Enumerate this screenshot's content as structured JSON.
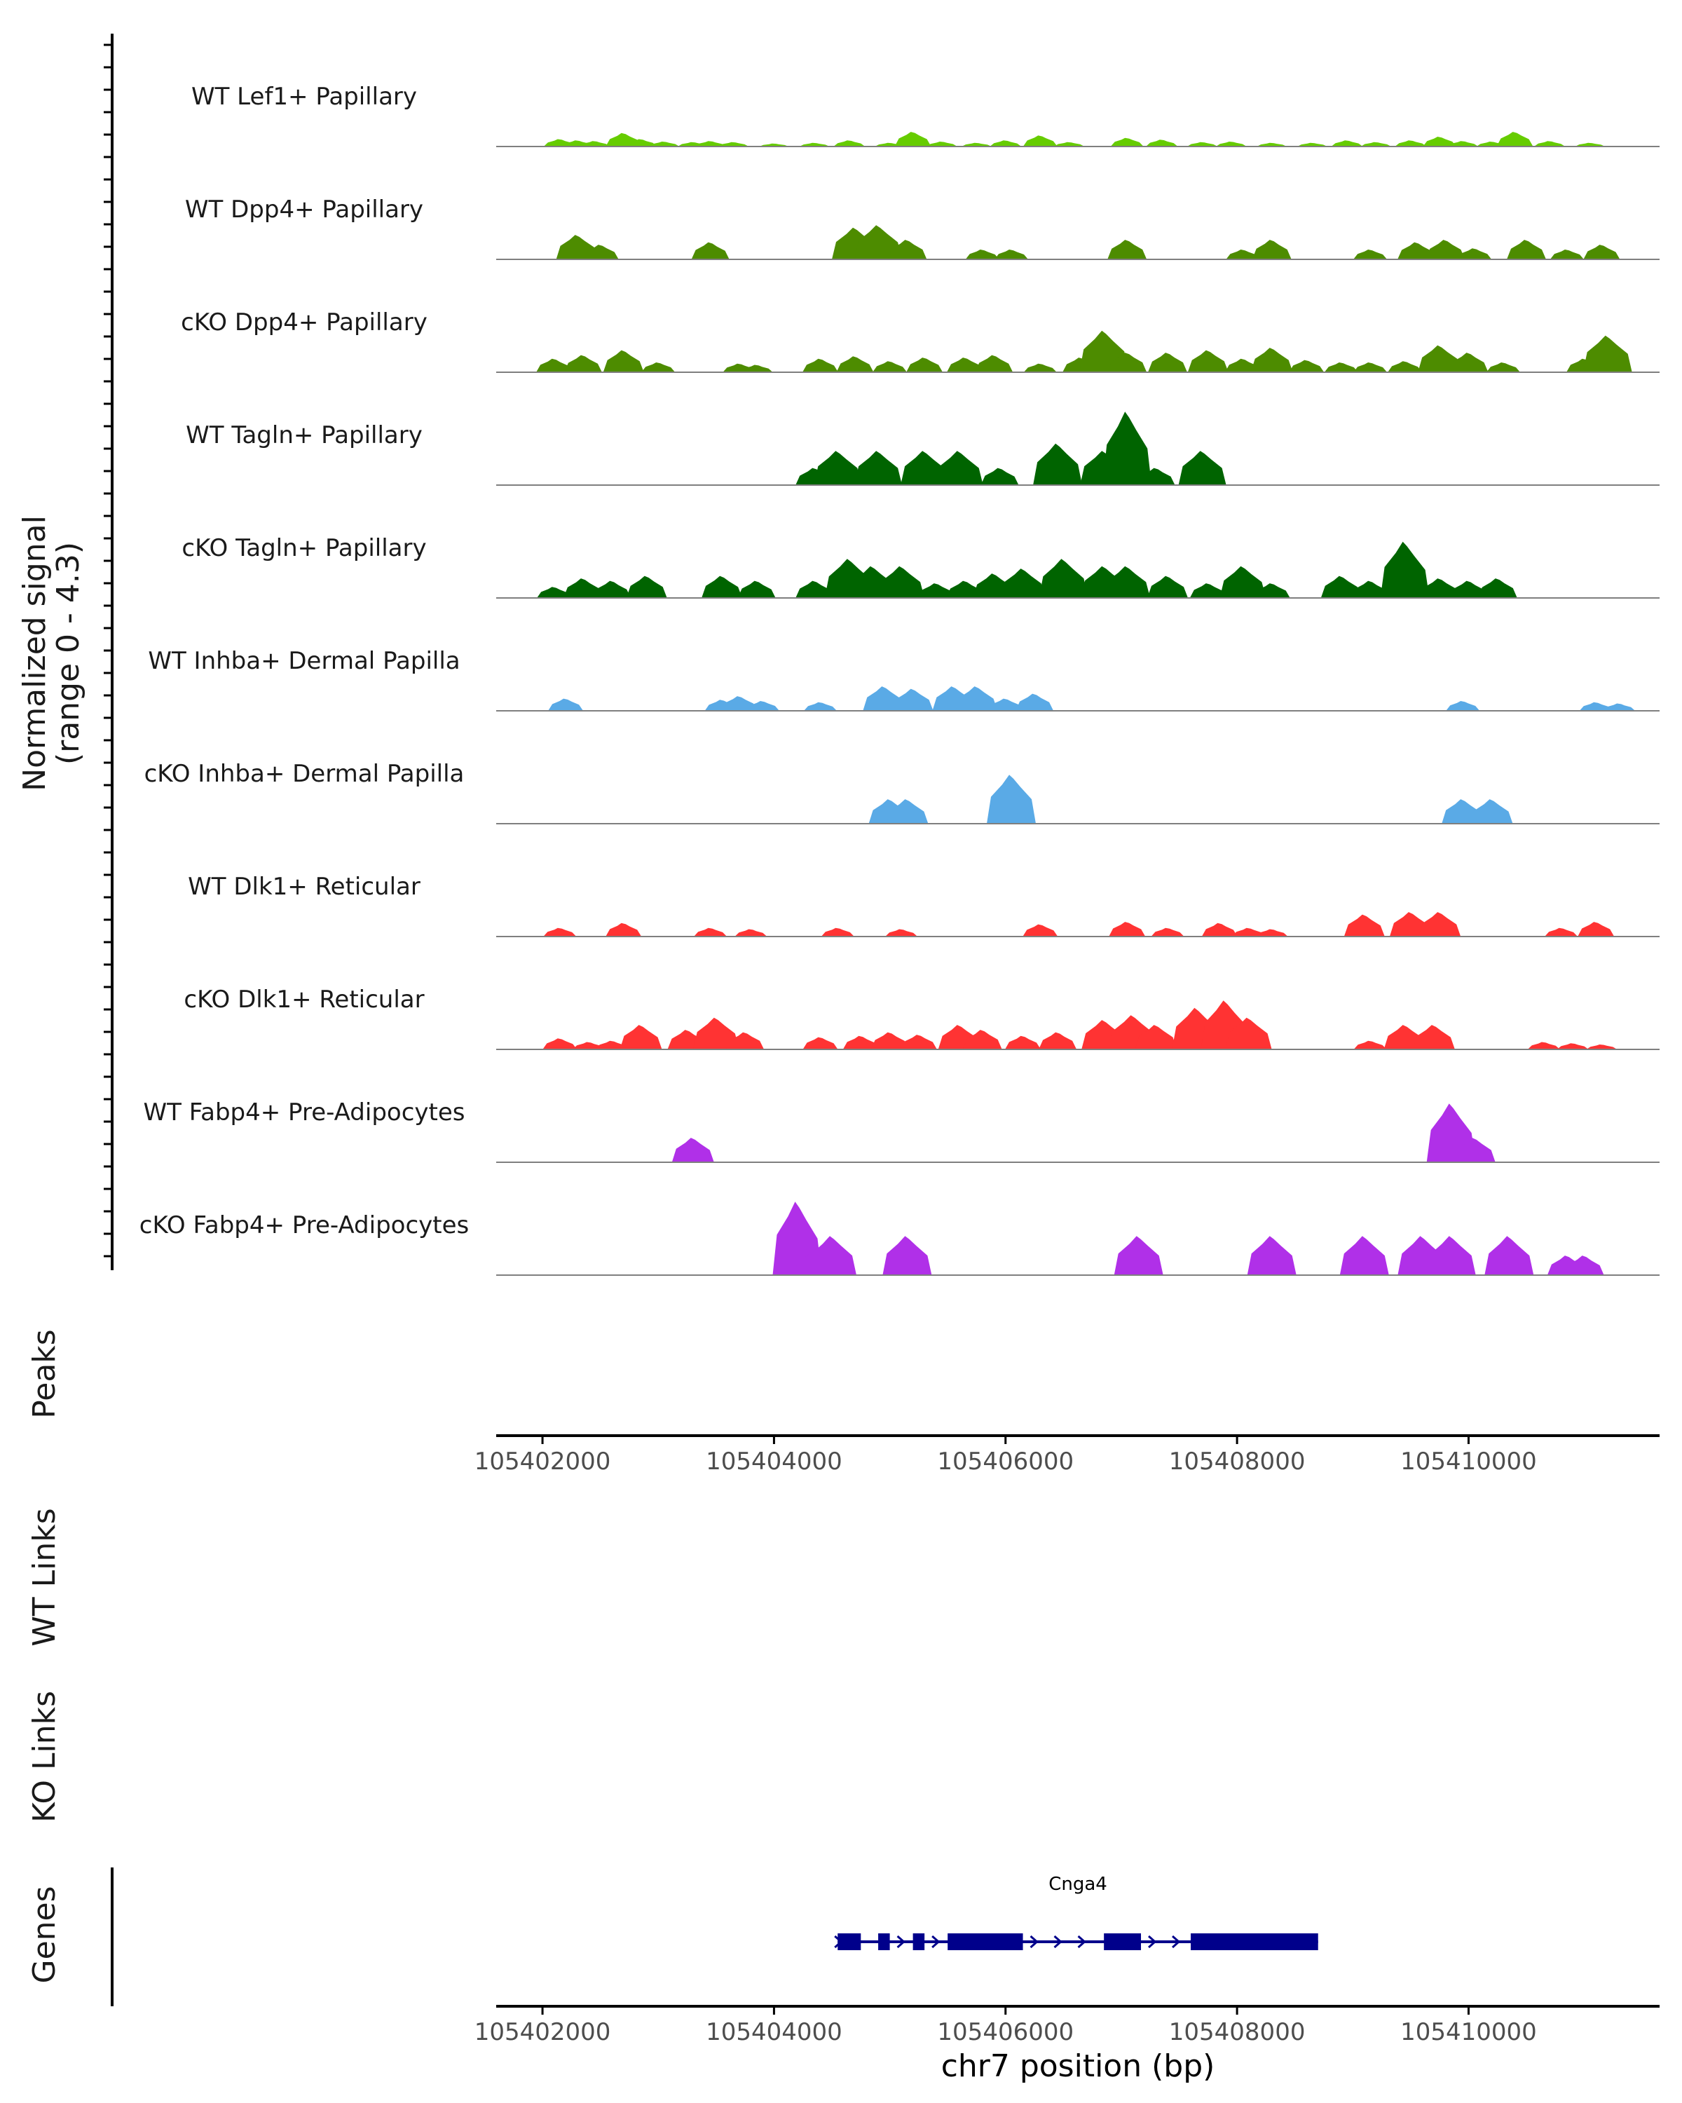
{
  "chart_data": {
    "type": "area",
    "title": "",
    "ylabel": "Normalized signal",
    "ylabel_range": "(range 0 - 4.3)",
    "ylim": [
      0,
      4.3
    ],
    "xlabel": "chr7 position (bp)",
    "xlim": [
      105401600,
      105411650
    ],
    "x_ticks": [
      105402000,
      105404000,
      105406000,
      105408000,
      105410000
    ],
    "x_tick_labels": [
      "105402000",
      "105404000",
      "105406000",
      "105408000",
      "105410000"
    ],
    "tracks": [
      {
        "name": "WT Lef1+ Papillary",
        "color": "#66CC00",
        "peaks": [
          [
            105402150,
            0.3
          ],
          [
            105402300,
            0.25
          ],
          [
            105402450,
            0.22
          ],
          [
            105402700,
            0.55
          ],
          [
            105402850,
            0.3
          ],
          [
            105403050,
            0.2
          ],
          [
            105403300,
            0.18
          ],
          [
            105403450,
            0.22
          ],
          [
            105403650,
            0.18
          ],
          [
            105404000,
            0.12
          ],
          [
            105404350,
            0.15
          ],
          [
            105404650,
            0.25
          ],
          [
            105405000,
            0.15
          ],
          [
            105405200,
            0.6
          ],
          [
            105405450,
            0.2
          ],
          [
            105405750,
            0.15
          ],
          [
            105406000,
            0.25
          ],
          [
            105406300,
            0.45
          ],
          [
            105406550,
            0.18
          ],
          [
            105407050,
            0.35
          ],
          [
            105407350,
            0.28
          ],
          [
            105407700,
            0.18
          ],
          [
            105407950,
            0.2
          ],
          [
            105408300,
            0.15
          ],
          [
            105408650,
            0.15
          ],
          [
            105408950,
            0.25
          ],
          [
            105409200,
            0.18
          ],
          [
            105409500,
            0.25
          ],
          [
            105409750,
            0.4
          ],
          [
            105409950,
            0.22
          ],
          [
            105410200,
            0.2
          ],
          [
            105410400,
            0.6
          ],
          [
            105410700,
            0.22
          ],
          [
            105411050,
            0.15
          ]
        ]
      },
      {
        "name": "WT Dpp4+ Papillary",
        "color": "#4D8C00",
        "peaks": [
          [
            105402300,
            1.0
          ],
          [
            105402500,
            0.6
          ],
          [
            105403450,
            0.7
          ],
          [
            105404700,
            1.3
          ],
          [
            105404900,
            1.4
          ],
          [
            105405150,
            0.8
          ],
          [
            105405800,
            0.4
          ],
          [
            105406050,
            0.4
          ],
          [
            105407050,
            0.8
          ],
          [
            105408050,
            0.4
          ],
          [
            105408300,
            0.8
          ],
          [
            105409150,
            0.4
          ],
          [
            105409550,
            0.7
          ],
          [
            105409800,
            0.8
          ],
          [
            105410050,
            0.45
          ],
          [
            105410500,
            0.8
          ],
          [
            105410850,
            0.4
          ],
          [
            105411150,
            0.6
          ]
        ]
      },
      {
        "name": "cKO Dpp4+ Papillary",
        "color": "#4D8C00",
        "peaks": [
          [
            105402100,
            0.55
          ],
          [
            105402350,
            0.7
          ],
          [
            105402700,
            0.9
          ],
          [
            105403000,
            0.4
          ],
          [
            105403700,
            0.35
          ],
          [
            105403850,
            0.3
          ],
          [
            105404400,
            0.55
          ],
          [
            105404700,
            0.65
          ],
          [
            105405000,
            0.45
          ],
          [
            105405300,
            0.6
          ],
          [
            105405650,
            0.6
          ],
          [
            105405900,
            0.7
          ],
          [
            105406300,
            0.35
          ],
          [
            105406650,
            0.6
          ],
          [
            105406850,
            1.7
          ],
          [
            105407050,
            0.8
          ],
          [
            105407400,
            0.8
          ],
          [
            105407750,
            0.9
          ],
          [
            105408050,
            0.55
          ],
          [
            105408300,
            1.0
          ],
          [
            105408600,
            0.5
          ],
          [
            105408900,
            0.4
          ],
          [
            105409150,
            0.4
          ],
          [
            105409450,
            0.45
          ],
          [
            105409750,
            1.1
          ],
          [
            105410000,
            0.8
          ],
          [
            105410300,
            0.4
          ],
          [
            105411000,
            0.55
          ],
          [
            105411200,
            1.5
          ]
        ]
      },
      {
        "name": "WT Tagln+ Papillary",
        "color": "#006400",
        "peaks": [
          [
            105404350,
            0.7
          ],
          [
            105404550,
            1.4
          ],
          [
            105404900,
            1.4
          ],
          [
            105405300,
            1.4
          ],
          [
            105405600,
            1.4
          ],
          [
            105405950,
            0.7
          ],
          [
            105406450,
            1.7
          ],
          [
            105406850,
            1.4
          ],
          [
            105407050,
            3.0
          ],
          [
            105407300,
            0.7
          ],
          [
            105407700,
            1.4
          ]
        ]
      },
      {
        "name": "cKO Tagln+ Papillary",
        "color": "#006400",
        "peaks": [
          [
            105402100,
            0.45
          ],
          [
            105402350,
            0.8
          ],
          [
            105402600,
            0.7
          ],
          [
            105402900,
            0.9
          ],
          [
            105403550,
            0.9
          ],
          [
            105403850,
            0.7
          ],
          [
            105404350,
            0.7
          ],
          [
            105404650,
            1.6
          ],
          [
            105404850,
            1.3
          ],
          [
            105405100,
            1.3
          ],
          [
            105405400,
            0.6
          ],
          [
            105405650,
            0.7
          ],
          [
            105405900,
            1.0
          ],
          [
            105406150,
            1.2
          ],
          [
            105406500,
            1.6
          ],
          [
            105406850,
            1.3
          ],
          [
            105407050,
            1.3
          ],
          [
            105407400,
            0.9
          ],
          [
            105407750,
            0.6
          ],
          [
            105408050,
            1.3
          ],
          [
            105408300,
            0.6
          ],
          [
            105408900,
            0.9
          ],
          [
            105409150,
            0.7
          ],
          [
            105409450,
            2.3
          ],
          [
            105409750,
            0.8
          ],
          [
            105410000,
            0.7
          ],
          [
            105410250,
            0.8
          ]
        ]
      },
      {
        "name": "WT Inhba+ Dermal Papilla",
        "color": "#5AAAE6",
        "peaks": [
          [
            105402200,
            0.5
          ],
          [
            105403550,
            0.45
          ],
          [
            105403700,
            0.6
          ],
          [
            105403900,
            0.4
          ],
          [
            105404400,
            0.35
          ],
          [
            105404950,
            1.0
          ],
          [
            105405200,
            0.9
          ],
          [
            105405550,
            1.0
          ],
          [
            105405750,
            1.0
          ],
          [
            105406000,
            0.5
          ],
          [
            105406250,
            0.7
          ],
          [
            105409950,
            0.4
          ],
          [
            105411100,
            0.35
          ],
          [
            105411300,
            0.3
          ]
        ]
      },
      {
        "name": "cKO Inhba+ Dermal Papilla",
        "color": "#5AAAE6",
        "peaks": [
          [
            105405000,
            1.0
          ],
          [
            105405150,
            1.0
          ],
          [
            105406050,
            2.0
          ],
          [
            105409950,
            1.0
          ],
          [
            105410200,
            1.0
          ]
        ]
      },
      {
        "name": "WT Dlk1+ Reticular",
        "color": "#FF3333",
        "peaks": [
          [
            105402150,
            0.35
          ],
          [
            105402700,
            0.55
          ],
          [
            105403450,
            0.35
          ],
          [
            105403800,
            0.3
          ],
          [
            105404550,
            0.35
          ],
          [
            105405100,
            0.3
          ],
          [
            105406300,
            0.5
          ],
          [
            105407050,
            0.6
          ],
          [
            105407400,
            0.35
          ],
          [
            105407850,
            0.55
          ],
          [
            105408100,
            0.35
          ],
          [
            105408300,
            0.3
          ],
          [
            105409100,
            0.9
          ],
          [
            105409500,
            1.0
          ],
          [
            105409750,
            1.0
          ],
          [
            105410800,
            0.35
          ],
          [
            105411100,
            0.6
          ]
        ]
      },
      {
        "name": "cKO Dlk1+ Reticular",
        "color": "#FF3333",
        "peaks": [
          [
            105402150,
            0.45
          ],
          [
            105402400,
            0.3
          ],
          [
            105402600,
            0.35
          ],
          [
            105402850,
            1.0
          ],
          [
            105403250,
            0.8
          ],
          [
            105403500,
            1.3
          ],
          [
            105403750,
            0.7
          ],
          [
            105404400,
            0.5
          ],
          [
            105404750,
            0.55
          ],
          [
            105405000,
            0.7
          ],
          [
            105405250,
            0.6
          ],
          [
            105405600,
            1.0
          ],
          [
            105405800,
            0.8
          ],
          [
            105406150,
            0.55
          ],
          [
            105406450,
            0.7
          ],
          [
            105406850,
            1.2
          ],
          [
            105407100,
            1.4
          ],
          [
            105407300,
            1.0
          ],
          [
            105407650,
            1.7
          ],
          [
            105407900,
            2.0
          ],
          [
            105408100,
            1.3
          ],
          [
            105409150,
            0.35
          ],
          [
            105409450,
            1.0
          ],
          [
            105409700,
            1.0
          ],
          [
            105410650,
            0.3
          ],
          [
            105410900,
            0.25
          ],
          [
            105411150,
            0.2
          ]
        ]
      },
      {
        "name": "WT Fabp4+ Pre-Adipocytes",
        "color": "#B030E8",
        "peaks": [
          [
            105403300,
            1.0
          ],
          [
            105409850,
            2.4
          ],
          [
            105410050,
            1.0
          ]
        ]
      },
      {
        "name": "cKO Fabp4+ Pre-Adipocytes",
        "color": "#B030E8",
        "peaks": [
          [
            105404200,
            3.0
          ],
          [
            105404350,
            1.0
          ],
          [
            105404500,
            1.6
          ],
          [
            105405150,
            1.6
          ],
          [
            105407150,
            1.6
          ],
          [
            105408300,
            1.6
          ],
          [
            105409100,
            1.6
          ],
          [
            105409600,
            1.6
          ],
          [
            105409850,
            1.6
          ],
          [
            105410350,
            1.6
          ],
          [
            105410850,
            0.8
          ],
          [
            105411000,
            0.8
          ]
        ]
      }
    ],
    "empty_tracks": [
      "Peaks",
      "WT Links",
      "KO Links"
    ],
    "genes": {
      "label": "Genes",
      "items": [
        {
          "name": "Cnga4",
          "start": 105404550,
          "end": 105408700,
          "strand": "+",
          "exons": [
            [
              105404550,
              105404750
            ],
            [
              105404900,
              105405000
            ],
            [
              105405200,
              105405300
            ],
            [
              105405500,
              105406150
            ],
            [
              105406850,
              105407170
            ],
            [
              105407600,
              105408700
            ]
          ]
        }
      ]
    }
  }
}
